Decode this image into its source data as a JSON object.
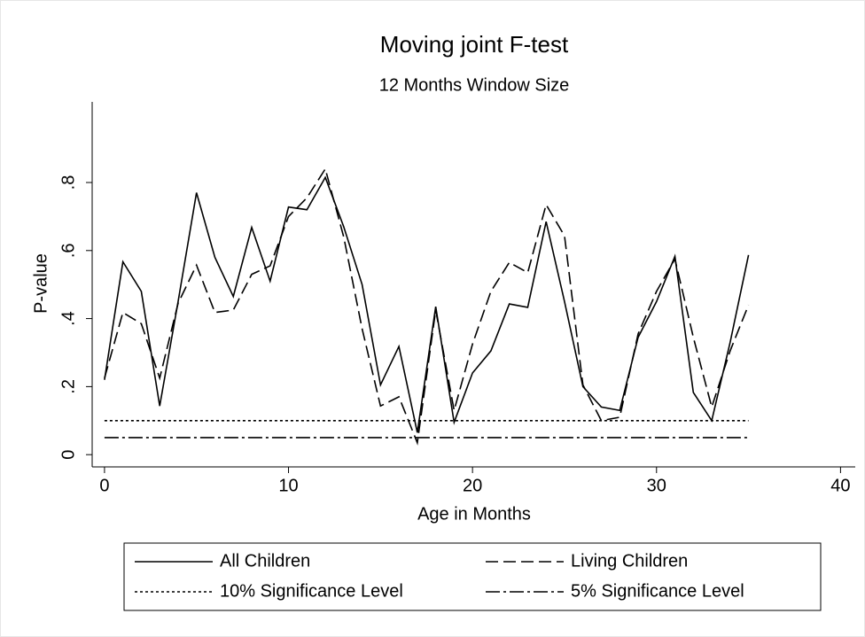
{
  "chart_data": {
    "type": "line",
    "title": "Moving joint F-test",
    "subtitle": "12 Months Window Size",
    "x_label": "Age in Months",
    "y_label": "P-value",
    "x": [
      0,
      1,
      2,
      3,
      4,
      5,
      6,
      7,
      8,
      9,
      10,
      11,
      12,
      13,
      14,
      15,
      16,
      17,
      18,
      19,
      20,
      21,
      22,
      23,
      24,
      25,
      26,
      27,
      28,
      29,
      30,
      31,
      32,
      33,
      34,
      35
    ],
    "series": [
      {
        "name": "All Children",
        "color": "#000000",
        "style": "solid",
        "values": [
          0.22,
          0.567,
          0.48,
          0.143,
          0.45,
          0.77,
          0.58,
          0.465,
          0.668,
          0.51,
          0.728,
          0.72,
          0.815,
          0.67,
          0.5,
          0.205,
          0.318,
          0.065,
          0.435,
          0.095,
          0.24,
          0.305,
          0.443,
          0.433,
          0.685,
          0.45,
          0.2,
          0.14,
          0.13,
          0.345,
          0.45,
          0.583,
          0.183,
          0.1,
          0.33,
          0.587
        ]
      },
      {
        "name": "Living Children",
        "color": "#000000",
        "style": "dash",
        "values": [
          0.225,
          0.418,
          0.385,
          0.225,
          0.445,
          0.557,
          0.418,
          0.425,
          0.53,
          0.555,
          0.7,
          0.755,
          0.84,
          0.64,
          0.37,
          0.143,
          0.17,
          0.035,
          0.425,
          0.13,
          0.325,
          0.48,
          0.565,
          0.535,
          0.735,
          0.643,
          0.205,
          0.1,
          0.11,
          0.355,
          0.48,
          0.575,
          0.345,
          0.14,
          0.305,
          0.44
        ]
      },
      {
        "name": "10% Significance Level",
        "color": "#000000",
        "style": "dot",
        "values": [
          0.1,
          0.1,
          0.1,
          0.1,
          0.1,
          0.1,
          0.1,
          0.1,
          0.1,
          0.1,
          0.1,
          0.1,
          0.1,
          0.1,
          0.1,
          0.1,
          0.1,
          0.1,
          0.1,
          0.1,
          0.1,
          0.1,
          0.1,
          0.1,
          0.1,
          0.1,
          0.1,
          0.1,
          0.1,
          0.1,
          0.1,
          0.1,
          0.1,
          0.1,
          0.1,
          0.1
        ]
      },
      {
        "name": "5% Significance Level",
        "color": "#000000",
        "style": "dashdot",
        "values": [
          0.05,
          0.05,
          0.05,
          0.05,
          0.05,
          0.05,
          0.05,
          0.05,
          0.05,
          0.05,
          0.05,
          0.05,
          0.05,
          0.05,
          0.05,
          0.05,
          0.05,
          0.05,
          0.05,
          0.05,
          0.05,
          0.05,
          0.05,
          0.05,
          0.05,
          0.05,
          0.05,
          0.05,
          0.05,
          0.05,
          0.05,
          0.05,
          0.05,
          0.05,
          0.05,
          0.05
        ]
      }
    ],
    "xlim": [
      -0.67,
      40.8
    ],
    "ylim": [
      -0.036,
      1.037
    ],
    "xticks": [
      0,
      10,
      20,
      30,
      40
    ],
    "yticks": [
      0,
      {
        "value": 0.2,
        "label": ".2"
      },
      {
        "value": 0.4,
        "label": ".4"
      },
      {
        "value": 0.6,
        "label": ".6"
      },
      {
        "value": 0.8,
        "label": ".8"
      }
    ],
    "legend": "bottom"
  }
}
